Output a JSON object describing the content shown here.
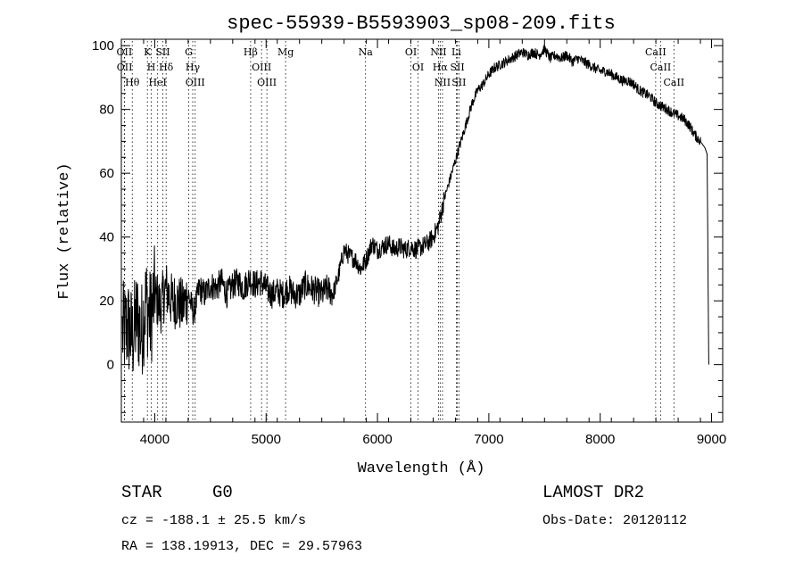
{
  "chart_data": {
    "type": "line",
    "title": "spec-55939-B5593903_sp08-209.fits",
    "xlabel": "Wavelength (Å)",
    "ylabel": "Flux (relative)",
    "xlim": [
      3700,
      9100
    ],
    "ylim": [
      -18,
      102
    ],
    "x_ticks": [
      4000,
      5000,
      6000,
      7000,
      8000,
      9000
    ],
    "y_ticks": [
      0,
      20,
      40,
      60,
      80,
      100
    ],
    "grid": false,
    "series": [
      {
        "x": [
          3710,
          3760,
          3800,
          3840,
          3880,
          3920,
          3960,
          4000,
          4050,
          4100,
          4150,
          4200,
          4250,
          4300,
          4350,
          4400,
          4450,
          4500,
          4550,
          4600,
          4650,
          4700,
          4750,
          4800,
          4850,
          4900,
          4950,
          5000,
          5050,
          5100,
          5150,
          5200,
          5250,
          5300,
          5350,
          5400,
          5450,
          5500,
          5550,
          5600,
          5650,
          5700,
          5750,
          5800,
          5850,
          5900,
          5950,
          6000,
          6050,
          6100,
          6150,
          6200,
          6250,
          6300,
          6350,
          6400,
          6450,
          6500,
          6550,
          6600,
          6650,
          6700,
          6750,
          6800,
          6850,
          6900,
          6950,
          7000,
          7050,
          7100,
          7150,
          7200,
          7250,
          7300,
          7350,
          7400,
          7450,
          7500,
          7550,
          7600,
          7650,
          7700,
          7750,
          7800,
          7850,
          7900,
          7950,
          8000,
          8050,
          8100,
          8150,
          8200,
          8250,
          8300,
          8350,
          8400,
          8450,
          8500,
          8550,
          8600,
          8650,
          8700,
          8750,
          8800,
          8850,
          8900,
          8940,
          8960,
          8975
        ],
        "y": [
          10,
          12,
          8,
          15,
          10,
          20,
          14,
          22,
          18,
          24,
          20,
          20,
          18,
          22,
          16,
          24,
          22,
          25,
          24,
          26,
          22,
          25,
          26,
          24,
          27,
          25,
          26,
          24,
          22,
          23,
          22,
          24,
          22,
          22,
          25,
          24,
          23,
          22,
          24,
          22,
          28,
          36,
          34,
          33,
          30,
          33,
          38,
          36,
          37,
          38,
          36,
          37,
          36,
          37,
          36,
          37,
          38,
          40,
          44,
          52,
          58,
          64,
          70,
          76,
          82,
          86,
          88,
          91,
          93,
          94,
          95,
          96,
          97,
          98,
          97,
          98,
          97,
          99,
          96,
          97,
          96,
          97,
          95,
          96,
          95,
          94,
          93,
          92,
          92,
          91,
          90,
          89,
          89,
          88,
          86,
          85,
          84,
          82,
          81,
          80,
          79,
          78,
          77,
          75,
          72,
          70,
          68,
          66,
          0
        ]
      }
    ],
    "lines": [
      {
        "name": "Hθ",
        "x": 3798
      },
      {
        "name": "OII",
        "x": 3727
      },
      {
        "name": "OII",
        "x": 3729
      },
      {
        "name": "K",
        "x": 3934
      },
      {
        "name": "H",
        "x": 3969
      },
      {
        "name": "HeI",
        "x": 4026
      },
      {
        "name": "Hδ",
        "x": 4102
      },
      {
        "name": "SII",
        "x": 4072
      },
      {
        "name": "G",
        "x": 4305
      },
      {
        "name": "OIII",
        "x": 4363
      },
      {
        "name": "Hγ",
        "x": 4341
      },
      {
        "name": "Hβ",
        "x": 4861
      },
      {
        "name": "OIII",
        "x": 4959
      },
      {
        "name": "OIII",
        "x": 5007
      },
      {
        "name": "Mg",
        "x": 5175
      },
      {
        "name": "Na",
        "x": 5893
      },
      {
        "name": "OI",
        "x": 6300
      },
      {
        "name": "OI",
        "x": 6364
      },
      {
        "name": "NII",
        "x": 6548
      },
      {
        "name": "Hα",
        "x": 6563
      },
      {
        "name": "NII",
        "x": 6584
      },
      {
        "name": "SII",
        "x": 6717
      },
      {
        "name": "SII",
        "x": 6731
      },
      {
        "name": "Li",
        "x": 6708
      },
      {
        "name": "CaII",
        "x": 8498
      },
      {
        "name": "CaII",
        "x": 8542
      },
      {
        "name": "CaII",
        "x": 8662
      }
    ]
  },
  "info": {
    "object_class": "STAR",
    "subclass": "G0",
    "survey": "LAMOST DR2",
    "redshift": "cz = -188.1 ± 25.5 km/s",
    "obs_date": "Obs-Date: 20120112",
    "coordinates": "RA = 138.19913, DEC =  29.57963"
  }
}
